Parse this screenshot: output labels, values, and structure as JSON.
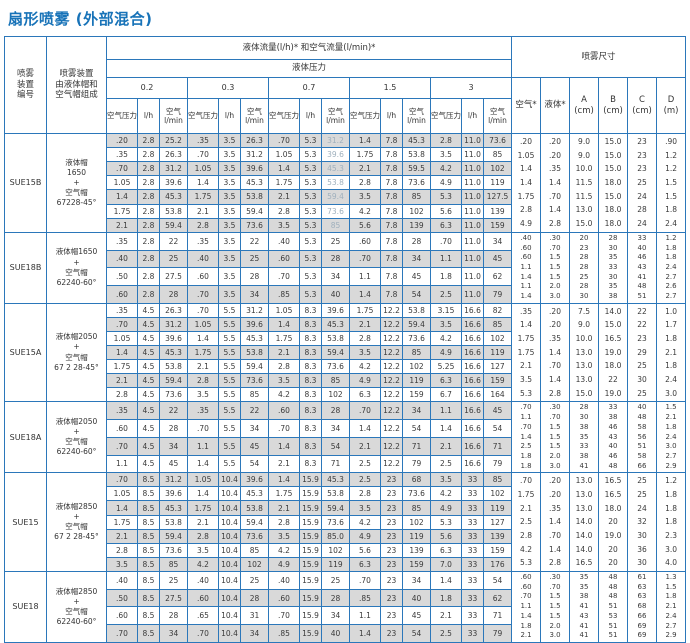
{
  "title": "扇形喷雾 (外部混合)",
  "table": {
    "header": {
      "device_no": "喷雾\n装置\n编号",
      "device_desc": "喷雾装置\n由液体帽和\n空气帽组成",
      "flow_title": "液体流量(l/h)* 和空气流量(l/min)*",
      "pressure_title": "液体压力",
      "pressures": [
        "0.2",
        "0.3",
        "0.7",
        "1.5",
        "3"
      ],
      "sub_cols": [
        "空气压力",
        "l/h",
        "空气\nl/min"
      ],
      "spray_title": "喷雾尺寸",
      "spray_cols": [
        "空气*",
        "液体*",
        "A\n(cm)",
        "B\n(cm)",
        "C\n(cm)",
        "D\n(m)"
      ]
    },
    "blocks": [
      {
        "id": "SUE15B",
        "device": [
          "液体帽",
          "1650",
          "+",
          "空气帽",
          "67228-45°"
        ],
        "muted_cols": [
          8
        ],
        "rows": [
          [
            ".20",
            "2.8",
            "25.2",
            ".35",
            "3.5",
            "26.3",
            ".70",
            "5.3",
            "31.2",
            "1.4",
            "7.8",
            "45.3",
            "2.8",
            "11.0",
            "73.6"
          ],
          [
            ".35",
            "2.8",
            "26.3",
            ".70",
            "3.5",
            "31.2",
            "1.05",
            "5.3",
            "39.6",
            "1.75",
            "7.8",
            "53.8",
            "3.5",
            "11.0",
            "85"
          ],
          [
            ".70",
            "2.8",
            "31.2",
            "1.05",
            "3.5",
            "39.6",
            "1.4",
            "5.3",
            "45.3",
            "2.1",
            "7.8",
            "59.5",
            "4.2",
            "11.0",
            "102"
          ],
          [
            "1.05",
            "2.8",
            "39.6",
            "1.4",
            "3.5",
            "45.3",
            "1.75",
            "5.3",
            "53.8",
            "2.8",
            "7.8",
            "73.6",
            "4.9",
            "11.0",
            "119"
          ],
          [
            "1.4",
            "2.8",
            "45.3",
            "1.75",
            "3.5",
            "53.8",
            "2.1",
            "5.3",
            "59.4",
            "3.5",
            "7.8",
            "85",
            "5.3",
            "11.0",
            "127.5"
          ],
          [
            "1.75",
            "2.8",
            "53.8",
            "2.1",
            "3.5",
            "59.4",
            "2.8",
            "5.3",
            "73.6",
            "4.2",
            "7.8",
            "102",
            "5.6",
            "11.0",
            "139"
          ],
          [
            "2.1",
            "2.8",
            "59.4",
            "2.8",
            "3.5",
            "73.6",
            "3.5",
            "5.3",
            "85",
            "5.6",
            "7.8",
            "139",
            "6.3",
            "11.0",
            "159"
          ]
        ],
        "spray_rows": [
          [
            ".20",
            ".20",
            "9.0",
            "15.0",
            "23",
            ".90"
          ],
          [
            "1.05",
            ".20",
            "9.0",
            "15.0",
            "23",
            "1.2"
          ],
          [
            "1.4",
            ".35",
            "10.0",
            "15.0",
            "23",
            "1.2"
          ],
          [
            "1.4",
            "1.4",
            "11.5",
            "18.0",
            "25",
            "1.5"
          ],
          [
            "1.75",
            ".70",
            "11.5",
            "15.0",
            "24",
            "1.5"
          ],
          [
            "2.8",
            "1.4",
            "13.0",
            "18.0",
            "28",
            "1.8"
          ],
          [
            "4.9",
            "2.8",
            "15.0",
            "18.0",
            "24",
            "2.4"
          ]
        ]
      },
      {
        "id": "SUE18B",
        "device": [
          "液体帽1650",
          "+",
          "空气帽",
          "62240-60°"
        ],
        "rows": [
          [
            ".35",
            "2.8",
            "22",
            ".35",
            "3.5",
            "22",
            ".40",
            "5.3",
            "25",
            ".60",
            "7.8",
            "28",
            ".70",
            "11.0",
            "34"
          ],
          [
            ".40",
            "2.8",
            "25",
            ".40",
            "3.5",
            "25",
            ".60",
            "5.3",
            "28",
            ".70",
            "7.8",
            "34",
            "1.1",
            "11.0",
            "45"
          ],
          [
            ".50",
            "2.8",
            "27.5",
            ".60",
            "3.5",
            "28",
            ".70",
            "5.3",
            "34",
            "1.1",
            "7.8",
            "45",
            "1.8",
            "11.0",
            "62"
          ],
          [
            ".60",
            "2.8",
            "28",
            ".70",
            "3.5",
            "34",
            ".85",
            "5.3",
            "40",
            "1.4",
            "7.8",
            "54",
            "2.5",
            "11.0",
            "79"
          ]
        ],
        "spray_rows": [
          [
            ".40",
            ".30",
            "20",
            "28",
            "33",
            "1.2"
          ],
          [
            ".60",
            ".70",
            "23",
            "30",
            "40",
            "1.8"
          ],
          [
            ".60",
            "1.5",
            "28",
            "35",
            "46",
            "1.8"
          ],
          [
            "1.1",
            "1.5",
            "28",
            "33",
            "43",
            "2.4"
          ],
          [
            "1.4",
            "1.5",
            "25",
            "30",
            "41",
            "2.7"
          ],
          [
            "1.1",
            "2.0",
            "28",
            "35",
            "48",
            "2.6"
          ],
          [
            "1.4",
            "3.0",
            "30",
            "38",
            "51",
            "2.7"
          ]
        ]
      },
      {
        "id": "SUE15A",
        "device": [
          "液体帽2050",
          "+",
          "空气帽",
          "67 2 28-45°"
        ],
        "rows": [
          [
            ".35",
            "4.5",
            "26.3",
            ".70",
            "5.5",
            "31.2",
            "1.05",
            "8.3",
            "39.6",
            "1.75",
            "12.2",
            "53.8",
            "3.15",
            "16.6",
            "82"
          ],
          [
            ".70",
            "4.5",
            "31.2",
            "1.05",
            "5.5",
            "39.6",
            "1.4",
            "8.3",
            "45.3",
            "2.1",
            "12.2",
            "59.4",
            "3.5",
            "16.6",
            "85"
          ],
          [
            "1.05",
            "4.5",
            "39.6",
            "1.4",
            "5.5",
            "45.3",
            "1.75",
            "8.3",
            "53.8",
            "2.8",
            "12.2",
            "73.6",
            "4.2",
            "16.6",
            "102"
          ],
          [
            "1.4",
            "4.5",
            "45.3",
            "1.75",
            "5.5",
            "53.8",
            "2.1",
            "8.3",
            "59.4",
            "3.5",
            "12.2",
            "85",
            "4.9",
            "16.6",
            "119"
          ],
          [
            "1.75",
            "4.5",
            "53.8",
            "2.1",
            "5.5",
            "59.4",
            "2.8",
            "8.3",
            "73.6",
            "4.2",
            "12.2",
            "102",
            "5.25",
            "16.6",
            "127"
          ],
          [
            "2.1",
            "4.5",
            "59.4",
            "2.8",
            "5.5",
            "73.6",
            "3.5",
            "8.3",
            "85",
            "4.9",
            "12.2",
            "119",
            "6.3",
            "16.6",
            "159"
          ],
          [
            "2.8",
            "4.5",
            "73.6",
            "3.5",
            "5.5",
            "85",
            "4.2",
            "8.3",
            "102",
            "6.3",
            "12.2",
            "159",
            "6.7",
            "16.6",
            "164"
          ]
        ],
        "spray_rows": [
          [
            ".35",
            ".20",
            "7.5",
            "14.0",
            "22",
            "1.0"
          ],
          [
            "1.4",
            ".20",
            "9.0",
            "15.0",
            "22",
            "1.7"
          ],
          [
            "1.75",
            ".35",
            "10.0",
            "16.5",
            "23",
            "1.8"
          ],
          [
            "1.75",
            "1.4",
            "13.0",
            "19.0",
            "29",
            "2.1"
          ],
          [
            "2.1",
            ".70",
            "13.0",
            "18.0",
            "25",
            "1.8"
          ],
          [
            "3.5",
            "1.4",
            "13.0",
            "22",
            "30",
            "2.4"
          ],
          [
            "5.3",
            "2.8",
            "15.0",
            "19.0",
            "25",
            "3.0"
          ]
        ]
      },
      {
        "id": "SUE18A",
        "device": [
          "液体帽2050",
          "+",
          "空气帽",
          "62240-60°"
        ],
        "rows": [
          [
            ".35",
            "4.5",
            "22",
            ".35",
            "5.5",
            "22",
            ".60",
            "8.3",
            "28",
            ".70",
            "12.2",
            "34",
            "1.1",
            "16.6",
            "45"
          ],
          [
            ".60",
            "4.5",
            "28",
            ".70",
            "5.5",
            "34",
            ".70",
            "8.3",
            "34",
            "1.4",
            "12.2",
            "54",
            "1.4",
            "16.6",
            "54"
          ],
          [
            ".70",
            "4.5",
            "34",
            "1.1",
            "5.5",
            "45",
            "1.4",
            "8.3",
            "54",
            "2.1",
            "12.2",
            "71",
            "2.1",
            "16.6",
            "71"
          ],
          [
            "1.1",
            "4.5",
            "45",
            "1.4",
            "5.5",
            "54",
            "2.1",
            "8.3",
            "71",
            "2.5",
            "12.2",
            "79",
            "2.5",
            "16.6",
            "79"
          ]
        ],
        "spray_rows": [
          [
            ".70",
            ".30",
            "28",
            "33",
            "40",
            "1.5"
          ],
          [
            "1.1",
            ".70",
            "30",
            "38",
            "48",
            "2.1"
          ],
          [
            ".70",
            "1.5",
            "38",
            "46",
            "58",
            "1.8"
          ],
          [
            "1.4",
            "1.5",
            "35",
            "43",
            "56",
            "2.4"
          ],
          [
            "2.5",
            "1.5",
            "33",
            "40",
            "51",
            "3.0"
          ],
          [
            "1.8",
            "2.0",
            "38",
            "46",
            "58",
            "2.7"
          ],
          [
            "1.8",
            "3.0",
            "41",
            "48",
            "66",
            "2.9"
          ]
        ]
      },
      {
        "id": "SUE15",
        "device": [
          "液体帽2850",
          "+",
          "空气帽",
          "67 2 28-45°"
        ],
        "rows": [
          [
            ".70",
            "8.5",
            "31.2",
            "1.05",
            "10.4",
            "39.6",
            "1.4",
            "15.9",
            "45.3",
            "2.5",
            "23",
            "68",
            "3.5",
            "33",
            "85"
          ],
          [
            "1.05",
            "8.5",
            "39.6",
            "1.4",
            "10.4",
            "45.3",
            "1.75",
            "15.9",
            "53.8",
            "2.8",
            "23",
            "73.6",
            "4.2",
            "33",
            "102"
          ],
          [
            "1.4",
            "8.5",
            "45.3",
            "1.75",
            "10.4",
            "53.8",
            "2.1",
            "15.9",
            "59.4",
            "3.5",
            "23",
            "85",
            "4.9",
            "33",
            "119"
          ],
          [
            "1.75",
            "8.5",
            "53.8",
            "2.1",
            "10.4",
            "59.4",
            "2.8",
            "15.9",
            "73.6",
            "4.2",
            "23",
            "102",
            "5.3",
            "33",
            "127"
          ],
          [
            "2.1",
            "8.5",
            "59.4",
            "2.8",
            "10.4",
            "73.6",
            "3.5",
            "15.9",
            "85.0",
            "4.9",
            "23",
            "119",
            "5.6",
            "33",
            "139"
          ],
          [
            "2.8",
            "8.5",
            "73.6",
            "3.5",
            "10.4",
            "85",
            "4.2",
            "15.9",
            "102",
            "5.6",
            "23",
            "139",
            "6.3",
            "33",
            "159"
          ],
          [
            "3.5",
            "8.5",
            "85",
            "4.2",
            "10.4",
            "102",
            "4.9",
            "15.9",
            "119",
            "6.3",
            "23",
            "159",
            "7.0",
            "33",
            "176"
          ]
        ],
        "spray_rows": [
          [
            ".70",
            ".20",
            "13.0",
            "16.5",
            "25",
            "1.2"
          ],
          [
            "1.75",
            ".20",
            "13.0",
            "16.5",
            "25",
            "1.8"
          ],
          [
            "2.1",
            ".35",
            "13.0",
            "18.0",
            "24",
            "1.8"
          ],
          [
            "2.5",
            "1.4",
            "14.0",
            "20",
            "32",
            "1.8"
          ],
          [
            "2.8",
            ".70",
            "14.0",
            "19.0",
            "30",
            "2.3"
          ],
          [
            "4.2",
            "1.4",
            "14.0",
            "20",
            "36",
            "3.0"
          ],
          [
            "5.3",
            "2.8",
            "16.5",
            "20",
            "30",
            "4.0"
          ]
        ]
      },
      {
        "id": "SUE18",
        "device": [
          "液体帽2850",
          "+",
          "空气帽",
          "62240-60°"
        ],
        "rows": [
          [
            ".40",
            "8.5",
            "25",
            ".40",
            "10.4",
            "25",
            ".40",
            "15.9",
            "25",
            ".70",
            "23",
            "34",
            "1.4",
            "33",
            "54"
          ],
          [
            ".50",
            "8.5",
            "27.5",
            ".60",
            "10.4",
            "28",
            ".60",
            "15.9",
            "28",
            ".85",
            "23",
            "40",
            "1.8",
            "33",
            "62"
          ],
          [
            ".60",
            "8.5",
            "28",
            ".65",
            "10.4",
            "31",
            ".70",
            "15.9",
            "34",
            "1.1",
            "23",
            "45",
            "2.1",
            "33",
            "71"
          ],
          [
            ".70",
            "8.5",
            "34",
            ".70",
            "10.4",
            "34",
            ".85",
            "15.9",
            "40",
            "1.4",
            "23",
            "54",
            "2.5",
            "33",
            "79"
          ]
        ],
        "spray_rows": [
          [
            ".60",
            ".30",
            "35",
            "48",
            "61",
            "1.3"
          ],
          [
            ".60",
            ".70",
            "35",
            "48",
            "63",
            "1.5"
          ],
          [
            ".70",
            "1.5",
            "38",
            "48",
            "63",
            "1.8"
          ],
          [
            "1.1",
            "1.5",
            "41",
            "51",
            "68",
            "2.1"
          ],
          [
            "1.4",
            "1.5",
            "43",
            "53",
            "66",
            "2.4"
          ],
          [
            "1.8",
            "2.0",
            "41",
            "51",
            "69",
            "2.7"
          ],
          [
            "2.1",
            "3.0",
            "41",
            "51",
            "69",
            "2.9"
          ]
        ]
      }
    ]
  }
}
